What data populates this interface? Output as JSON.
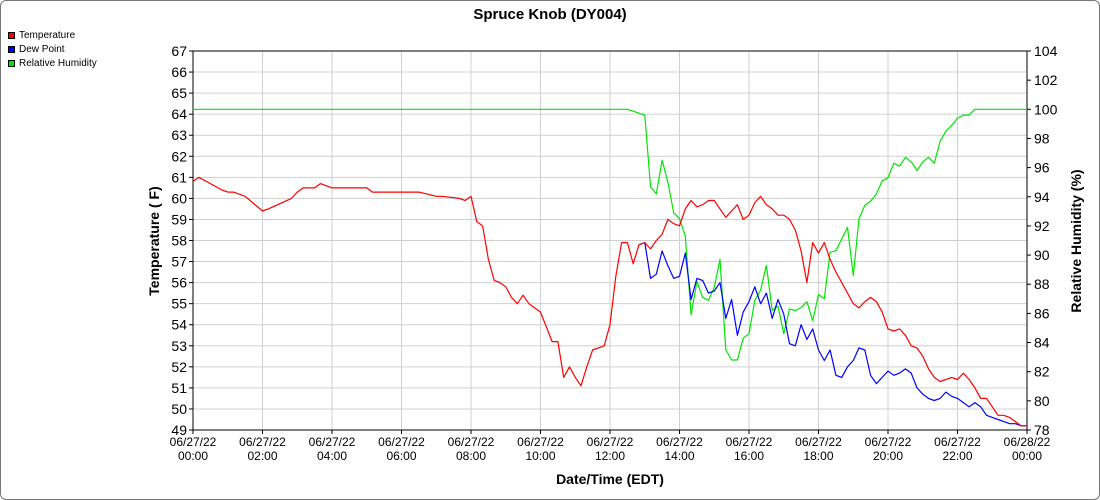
{
  "chart_data": {
    "type": "line",
    "title": "Spruce Knob (DY004)",
    "xlabel": "Date/Time (EDT)",
    "ylabel": "Temperature ( F)",
    "y2label": "Relative Humidity (%)",
    "ylim": [
      49,
      67
    ],
    "y2lim": [
      78,
      104
    ],
    "xlim": [
      "06/27/22 00:00",
      "06/28/22 00:00"
    ],
    "xticks": [
      "06/27/22 00:00",
      "06/27/22 02:00",
      "06/27/22 04:00",
      "06/27/22 06:00",
      "06/27/22 08:00",
      "06/27/22 10:00",
      "06/27/22 12:00",
      "06/27/22 14:00",
      "06/27/22 16:00",
      "06/27/22 18:00",
      "06/27/22 20:00",
      "06/27/22 22:00",
      "06/28/22 00:00"
    ],
    "xtick_labels": [
      [
        "06/27/22",
        "00:00"
      ],
      [
        "06/27/22",
        "02:00"
      ],
      [
        "06/27/22",
        "04:00"
      ],
      [
        "06/27/22",
        "06:00"
      ],
      [
        "06/27/22",
        "08:00"
      ],
      [
        "06/27/22",
        "10:00"
      ],
      [
        "06/27/22",
        "12:00"
      ],
      [
        "06/27/22",
        "14:00"
      ],
      [
        "06/27/22",
        "16:00"
      ],
      [
        "06/27/22",
        "18:00"
      ],
      [
        "06/27/22",
        "20:00"
      ],
      [
        "06/27/22",
        "22:00"
      ],
      [
        "06/28/22",
        "00:00"
      ]
    ],
    "yticks": [
      49,
      50,
      51,
      52,
      53,
      54,
      55,
      56,
      57,
      58,
      59,
      60,
      61,
      62,
      63,
      64,
      65,
      66,
      67
    ],
    "y2ticks": [
      78,
      80,
      82,
      84,
      86,
      88,
      90,
      92,
      94,
      96,
      98,
      100,
      102,
      104
    ],
    "grid": true,
    "legend": "top-left",
    "series": [
      {
        "name": "Temperature",
        "color": "#ff0000",
        "axis": "left",
        "x": [
          "06/27/22 00:00",
          "06/27/22 00:10",
          "06/27/22 00:30",
          "06/27/22 00:50",
          "06/27/22 01:00",
          "06/27/22 01:10",
          "06/27/22 01:30",
          "06/27/22 02:00",
          "06/27/22 02:10",
          "06/27/22 02:50",
          "06/27/22 03:00",
          "06/27/22 03:10",
          "06/27/22 03:30",
          "06/27/22 03:40",
          "06/27/22 04:00",
          "06/27/22 05:00",
          "06/27/22 05:10",
          "06/27/22 06:10",
          "06/27/22 06:30",
          "06/27/22 07:00",
          "06/27/22 07:10",
          "06/27/22 07:40",
          "06/27/22 07:50",
          "06/27/22 08:00",
          "06/27/22 08:10",
          "06/27/22 08:20",
          "06/27/22 08:30",
          "06/27/22 08:40",
          "06/27/22 08:50",
          "06/27/22 09:00",
          "06/27/22 09:10",
          "06/27/22 09:20",
          "06/27/22 09:30",
          "06/27/22 09:40",
          "06/27/22 09:50",
          "06/27/22 10:00",
          "06/27/22 10:10",
          "06/27/22 10:20",
          "06/27/22 10:30",
          "06/27/22 10:40",
          "06/27/22 10:50",
          "06/27/22 11:00",
          "06/27/22 11:10",
          "06/27/22 11:20",
          "06/27/22 11:30",
          "06/27/22 11:50",
          "06/27/22 12:00",
          "06/27/22 12:10",
          "06/27/22 12:20",
          "06/27/22 12:30",
          "06/27/22 12:40",
          "06/27/22 12:50",
          "06/27/22 13:00",
          "06/27/22 13:10",
          "06/27/22 13:20",
          "06/27/22 13:30",
          "06/27/22 13:40",
          "06/27/22 13:50",
          "06/27/22 14:00",
          "06/27/22 14:10",
          "06/27/22 14:20",
          "06/27/22 14:30",
          "06/27/22 14:40",
          "06/27/22 14:50",
          "06/27/22 15:00",
          "06/27/22 15:10",
          "06/27/22 15:20",
          "06/27/22 15:30",
          "06/27/22 15:40",
          "06/27/22 15:50",
          "06/27/22 16:00",
          "06/27/22 16:10",
          "06/27/22 16:20",
          "06/27/22 16:30",
          "06/27/22 16:40",
          "06/27/22 16:50",
          "06/27/22 17:00",
          "06/27/22 17:10",
          "06/27/22 17:20",
          "06/27/22 17:30",
          "06/27/22 17:40",
          "06/27/22 17:50",
          "06/27/22 18:00",
          "06/27/22 18:10",
          "06/27/22 18:20",
          "06/27/22 18:30",
          "06/27/22 18:40",
          "06/27/22 18:50",
          "06/27/22 19:00",
          "06/27/22 19:10",
          "06/27/22 19:20",
          "06/27/22 19:30",
          "06/27/22 19:40",
          "06/27/22 19:50",
          "06/27/22 20:00",
          "06/27/22 20:10",
          "06/27/22 20:20",
          "06/27/22 20:30",
          "06/27/22 20:40",
          "06/27/22 20:50",
          "06/27/22 21:00",
          "06/27/22 21:10",
          "06/27/22 21:20",
          "06/27/22 21:30",
          "06/27/22 21:40",
          "06/27/22 21:50",
          "06/27/22 22:00",
          "06/27/22 22:10",
          "06/27/22 22:20",
          "06/27/22 22:30",
          "06/27/22 22:40",
          "06/27/22 22:50",
          "06/27/22 23:00",
          "06/27/22 23:10",
          "06/27/22 23:20",
          "06/27/22 23:30",
          "06/27/22 23:40",
          "06/27/22 23:50",
          "06/28/22 00:00"
        ],
        "values": [
          60.8,
          61.0,
          60.7,
          60.4,
          60.3,
          60.3,
          60.1,
          59.4,
          59.5,
          60.0,
          60.3,
          60.5,
          60.5,
          60.7,
          60.5,
          60.5,
          60.3,
          60.3,
          60.3,
          60.1,
          60.1,
          60.0,
          59.9,
          60.1,
          58.9,
          58.7,
          57.1,
          56.1,
          56.0,
          55.8,
          55.3,
          55.0,
          55.4,
          55.0,
          54.8,
          54.6,
          53.9,
          53.2,
          53.2,
          51.5,
          52.0,
          51.5,
          51.1,
          52.0,
          52.8,
          53.0,
          54.0,
          56.3,
          57.9,
          57.9,
          56.9,
          57.8,
          57.9,
          57.6,
          58.0,
          58.3,
          59.0,
          58.8,
          58.7,
          59.5,
          59.9,
          59.6,
          59.7,
          59.9,
          59.9,
          59.5,
          59.1,
          59.4,
          59.7,
          59.0,
          59.2,
          59.8,
          60.1,
          59.7,
          59.5,
          59.2,
          59.2,
          59.0,
          58.5,
          57.5,
          56.0,
          57.9,
          57.4,
          57.9,
          57.1,
          56.5,
          56.0,
          55.5,
          55.0,
          54.8,
          55.1,
          55.3,
          55.1,
          54.6,
          53.8,
          53.7,
          53.8,
          53.5,
          53.0,
          52.9,
          52.5,
          51.9,
          51.5,
          51.3,
          51.4,
          51.5,
          51.4,
          51.7,
          51.4,
          51.0,
          50.5,
          50.5,
          50.1,
          49.7,
          49.7,
          49.6,
          49.4,
          49.2,
          49.2
        ]
      },
      {
        "name": "Dew Point",
        "color": "#0000ff",
        "axis": "left",
        "x": [
          "06/27/22 12:50",
          "06/27/22 13:00",
          "06/27/22 13:10",
          "06/27/22 13:20",
          "06/27/22 13:30",
          "06/27/22 13:40",
          "06/27/22 13:50",
          "06/27/22 14:00",
          "06/27/22 14:10",
          "06/27/22 14:20",
          "06/27/22 14:30",
          "06/27/22 14:40",
          "06/27/22 14:50",
          "06/27/22 15:00",
          "06/27/22 15:10",
          "06/27/22 15:20",
          "06/27/22 15:30",
          "06/27/22 15:40",
          "06/27/22 15:50",
          "06/27/22 16:00",
          "06/27/22 16:10",
          "06/27/22 16:20",
          "06/27/22 16:30",
          "06/27/22 16:40",
          "06/27/22 16:50",
          "06/27/22 17:00",
          "06/27/22 17:10",
          "06/27/22 17:20",
          "06/27/22 17:30",
          "06/27/22 17:40",
          "06/27/22 17:50",
          "06/27/22 18:00",
          "06/27/22 18:10",
          "06/27/22 18:20",
          "06/27/22 18:30",
          "06/27/22 18:40",
          "06/27/22 18:50",
          "06/27/22 19:00",
          "06/27/22 19:10",
          "06/27/22 19:20",
          "06/27/22 19:30",
          "06/27/22 19:40",
          "06/27/22 19:50",
          "06/27/22 20:00",
          "06/27/22 20:10",
          "06/27/22 20:20",
          "06/27/22 20:30",
          "06/27/22 20:40",
          "06/27/22 20:50",
          "06/27/22 21:00",
          "06/27/22 21:10",
          "06/27/22 21:20",
          "06/27/22 21:30",
          "06/27/22 21:40",
          "06/27/22 21:50",
          "06/27/22 22:00",
          "06/27/22 22:10",
          "06/27/22 22:20",
          "06/27/22 22:30",
          "06/27/22 22:40",
          "06/27/22 22:50",
          "06/27/22 23:00",
          "06/27/22 23:10",
          "06/27/22 23:20",
          "06/27/22 23:30",
          "06/27/22 23:40",
          "06/27/22 23:50",
          "06/28/22 00:00"
        ],
        "values": [
          57.8,
          57.9,
          56.2,
          56.4,
          57.5,
          56.8,
          56.2,
          56.3,
          57.4,
          55.2,
          56.2,
          56.1,
          55.5,
          55.6,
          56.0,
          54.3,
          55.2,
          53.5,
          54.6,
          55.1,
          55.8,
          55.0,
          55.5,
          54.3,
          55.2,
          54.5,
          53.1,
          53.0,
          54.0,
          53.3,
          53.8,
          52.8,
          52.3,
          52.8,
          51.6,
          51.5,
          52.0,
          52.3,
          52.9,
          52.8,
          51.6,
          51.2,
          51.5,
          51.8,
          51.6,
          51.7,
          51.9,
          51.7,
          51.0,
          50.7,
          50.5,
          50.4,
          50.5,
          50.8,
          50.6,
          50.5,
          50.3,
          50.1,
          50.3,
          50.1,
          49.7,
          49.6,
          49.5,
          49.4,
          49.3,
          49.3,
          49.2,
          49.2
        ]
      },
      {
        "name": "Relative Humidity",
        "color": "#00e600",
        "axis": "right",
        "x": [
          "06/27/22 00:00",
          "06/27/22 12:30",
          "06/27/22 13:00",
          "06/27/22 13:10",
          "06/27/22 13:20",
          "06/27/22 13:30",
          "06/27/22 13:40",
          "06/27/22 13:50",
          "06/27/22 14:00",
          "06/27/22 14:10",
          "06/27/22 14:20",
          "06/27/22 14:30",
          "06/27/22 14:40",
          "06/27/22 14:50",
          "06/27/22 15:00",
          "06/27/22 15:10",
          "06/27/22 15:20",
          "06/27/22 15:30",
          "06/27/22 15:40",
          "06/27/22 15:50",
          "06/27/22 16:00",
          "06/27/22 16:10",
          "06/27/22 16:20",
          "06/27/22 16:30",
          "06/27/22 16:40",
          "06/27/22 16:50",
          "06/27/22 17:00",
          "06/27/22 17:10",
          "06/27/22 17:20",
          "06/27/22 17:30",
          "06/27/22 17:40",
          "06/27/22 17:50",
          "06/27/22 18:00",
          "06/27/22 18:10",
          "06/27/22 18:20",
          "06/27/22 18:30",
          "06/27/22 18:40",
          "06/27/22 18:50",
          "06/27/22 19:00",
          "06/27/22 19:10",
          "06/27/22 19:20",
          "06/27/22 19:30",
          "06/27/22 19:40",
          "06/27/22 19:50",
          "06/27/22 20:00",
          "06/27/22 20:10",
          "06/27/22 20:20",
          "06/27/22 20:30",
          "06/27/22 20:40",
          "06/27/22 20:50",
          "06/27/22 21:00",
          "06/27/22 21:10",
          "06/27/22 21:20",
          "06/27/22 21:30",
          "06/27/22 21:40",
          "06/27/22 21:50",
          "06/27/22 22:00",
          "06/27/22 22:10",
          "06/27/22 22:20",
          "06/27/22 22:30",
          "06/27/22 22:40",
          "06/27/22 22:50",
          "06/27/22 23:00",
          "06/27/22 23:10",
          "06/27/22 23:20",
          "06/27/22 23:30",
          "06/27/22 23:40",
          "06/27/22 23:50",
          "06/28/22 00:00"
        ],
        "values": [
          100,
          100,
          99.6,
          94.7,
          94.2,
          96.5,
          95.0,
          92.9,
          92.5,
          91.3,
          85.9,
          88.2,
          87.1,
          86.9,
          87.8,
          89.7,
          83.5,
          82.8,
          82.8,
          84.3,
          84.6,
          86.9,
          87.6,
          89.3,
          86.2,
          86.5,
          84.6,
          86.3,
          86.2,
          86.4,
          86.8,
          85.5,
          87.3,
          87.0,
          90.2,
          90.3,
          91.1,
          91.9,
          88.6,
          92.5,
          93.4,
          93.7,
          94.2,
          95.1,
          95.3,
          96.3,
          96.1,
          96.7,
          96.4,
          95.8,
          96.4,
          96.7,
          96.3,
          97.8,
          98.5,
          98.9,
          99.4,
          99.6,
          99.6,
          100,
          100,
          100,
          100,
          100,
          100,
          100,
          100,
          100,
          100
        ]
      }
    ]
  }
}
